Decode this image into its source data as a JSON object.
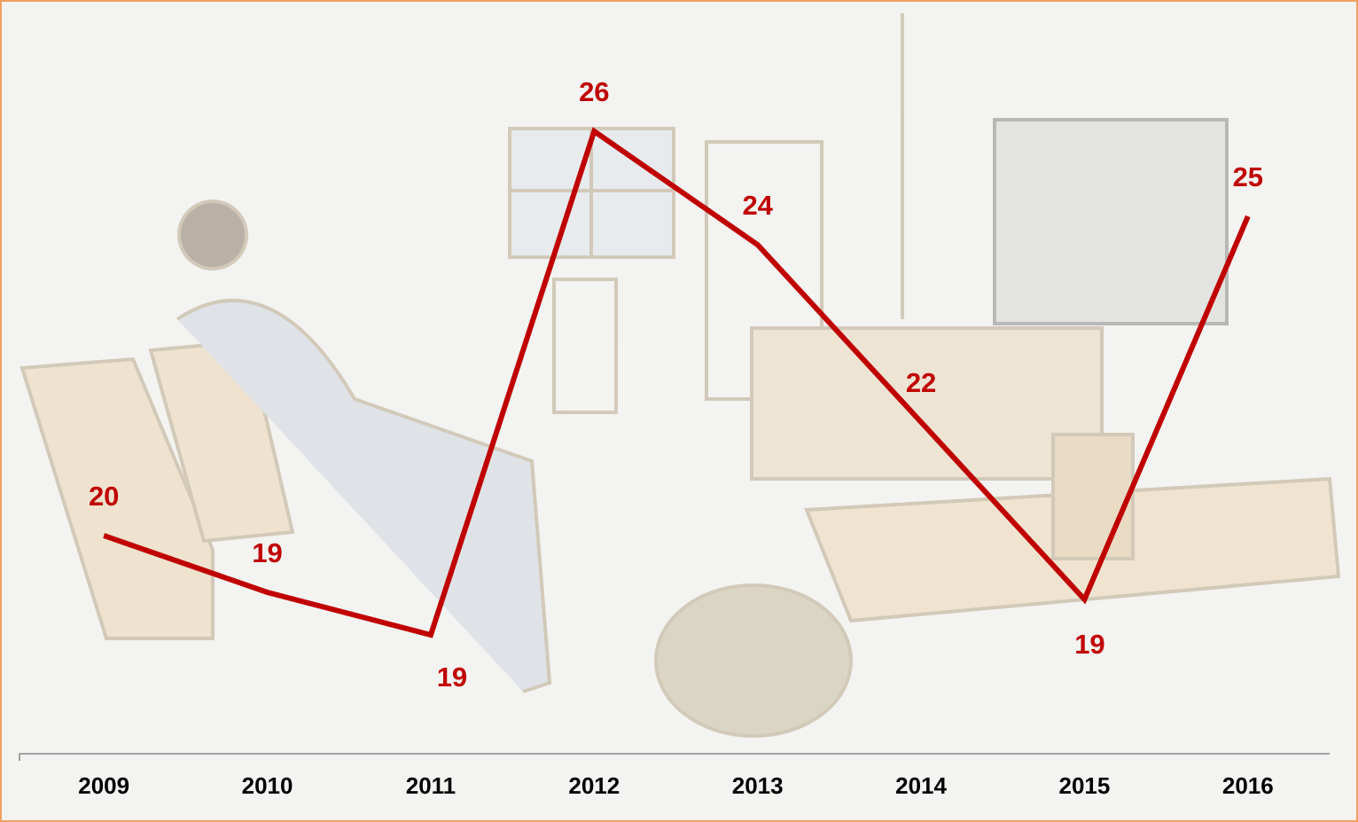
{
  "chart_data": {
    "type": "line",
    "categories": [
      "2009",
      "2010",
      "2011",
      "2012",
      "2013",
      "2014",
      "2015",
      "2016"
    ],
    "series": [
      {
        "color": "#c00000",
        "values": [
          20.2,
          19.4,
          18.8,
          25.9,
          24.3,
          21.8,
          19.3,
          24.7
        ],
        "value_labels": [
          "20",
          "19",
          "19",
          "26",
          "24",
          "22",
          "19",
          "25"
        ]
      }
    ],
    "ylim": [
      18,
      27
    ]
  }
}
